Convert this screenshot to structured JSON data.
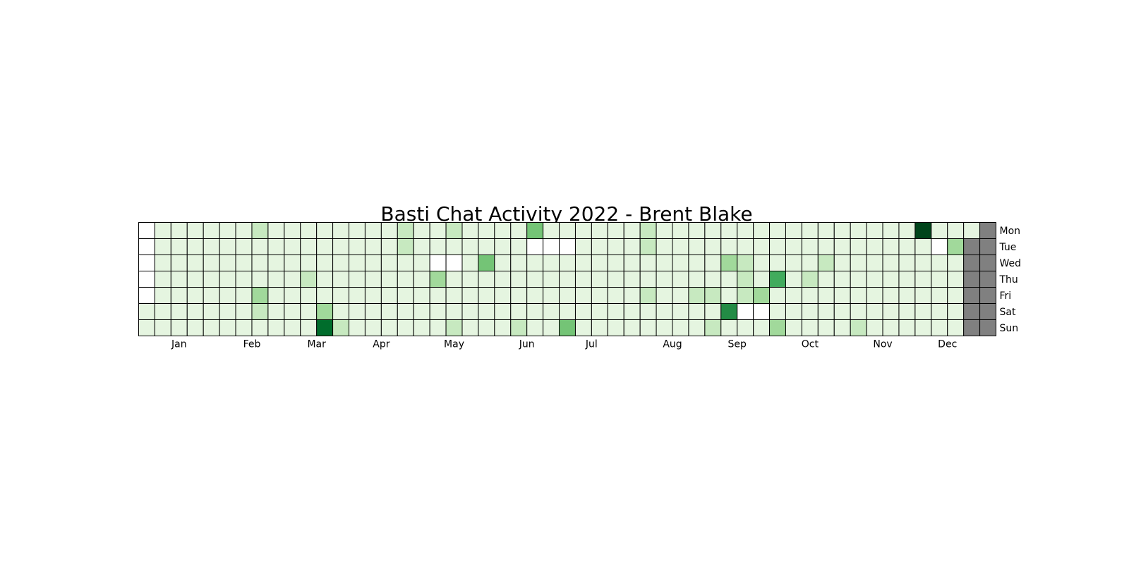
{
  "chart_data": {
    "type": "heatmap",
    "title": "Basti Chat Activity 2022 - Brent Blake",
    "xlabel": "",
    "ylabel": "",
    "month_labels": [
      "Jan",
      "Feb",
      "Mar",
      "Apr",
      "May",
      "Jun",
      "Jul",
      "Aug",
      "Sep",
      "Oct",
      "Nov",
      "Dec"
    ],
    "month_label_weeks": [
      2.5,
      7,
      11,
      15,
      19.5,
      24,
      28,
      33,
      37,
      41.5,
      46,
      50
    ],
    "day_labels": [
      "Mon",
      "Tue",
      "Wed",
      "Thu",
      "Fri",
      "Sat",
      "Sun"
    ],
    "weeks": 53,
    "color_scale": [
      "#f7fcf5",
      "#e5f5e0",
      "#c7e9c0",
      "#a1d99b",
      "#74c476",
      "#41ab5d",
      "#238b45",
      "#006d2c",
      "#00441b"
    ],
    "empty_color": "#ffffff",
    "na_color": "#808080",
    "grid_color": "#000000",
    "max_level": 8,
    "levels": [
      [
        0,
        1,
        1,
        1,
        1,
        1,
        1,
        2,
        1,
        1,
        1,
        1,
        1,
        1,
        1,
        1,
        2,
        1,
        1,
        2,
        1,
        1,
        1,
        1,
        4,
        1,
        1,
        1,
        1,
        1,
        1,
        2,
        1,
        1,
        1,
        1,
        1,
        1,
        1,
        1,
        1,
        1,
        1,
        1,
        1,
        1,
        1,
        1,
        8,
        1,
        1,
        1,
        -1
      ],
      [
        0,
        1,
        1,
        1,
        1,
        1,
        1,
        1,
        1,
        1,
        1,
        1,
        1,
        1,
        1,
        1,
        2,
        1,
        1,
        1,
        1,
        1,
        1,
        1,
        0,
        0,
        0,
        1,
        1,
        1,
        1,
        2,
        1,
        1,
        1,
        1,
        1,
        1,
        1,
        1,
        1,
        1,
        1,
        1,
        1,
        1,
        1,
        1,
        1,
        0,
        3,
        -1,
        -1
      ],
      [
        0,
        1,
        1,
        1,
        1,
        1,
        1,
        1,
        1,
        1,
        1,
        1,
        1,
        1,
        1,
        1,
        1,
        1,
        0,
        0,
        1,
        4,
        1,
        1,
        1,
        1,
        1,
        1,
        1,
        1,
        1,
        1,
        1,
        1,
        1,
        1,
        3,
        2,
        1,
        1,
        1,
        1,
        2,
        1,
        1,
        1,
        1,
        1,
        1,
        1,
        1,
        -1,
        -1
      ],
      [
        0,
        1,
        1,
        1,
        1,
        1,
        1,
        1,
        1,
        1,
        2,
        1,
        1,
        1,
        1,
        1,
        1,
        1,
        3,
        1,
        1,
        1,
        1,
        1,
        1,
        1,
        1,
        1,
        1,
        1,
        1,
        1,
        1,
        1,
        1,
        1,
        1,
        2,
        1,
        5,
        1,
        2,
        1,
        1,
        1,
        1,
        1,
        1,
        1,
        1,
        1,
        -1,
        -1
      ],
      [
        0,
        1,
        1,
        1,
        1,
        1,
        1,
        3,
        1,
        1,
        1,
        1,
        1,
        1,
        1,
        1,
        1,
        1,
        1,
        1,
        1,
        1,
        1,
        1,
        1,
        1,
        1,
        1,
        1,
        1,
        1,
        2,
        1,
        1,
        2,
        2,
        1,
        2,
        3,
        1,
        1,
        1,
        1,
        1,
        1,
        1,
        1,
        1,
        1,
        1,
        1,
        -1,
        -1
      ],
      [
        1,
        1,
        1,
        1,
        1,
        1,
        1,
        2,
        1,
        1,
        1,
        3,
        1,
        1,
        1,
        1,
        1,
        1,
        1,
        1,
        1,
        1,
        1,
        1,
        1,
        1,
        1,
        1,
        1,
        1,
        1,
        1,
        1,
        1,
        1,
        1,
        6,
        0,
        0,
        1,
        1,
        1,
        1,
        1,
        1,
        1,
        1,
        1,
        1,
        1,
        1,
        -1,
        -1
      ],
      [
        1,
        1,
        1,
        1,
        1,
        1,
        1,
        1,
        1,
        1,
        1,
        7,
        2,
        1,
        1,
        1,
        1,
        1,
        1,
        2,
        1,
        1,
        1,
        2,
        1,
        1,
        4,
        1,
        1,
        1,
        1,
        1,
        1,
        1,
        1,
        2,
        1,
        1,
        1,
        3,
        1,
        1,
        1,
        1,
        2,
        1,
        1,
        1,
        1,
        1,
        1,
        -1,
        -1
      ]
    ]
  }
}
